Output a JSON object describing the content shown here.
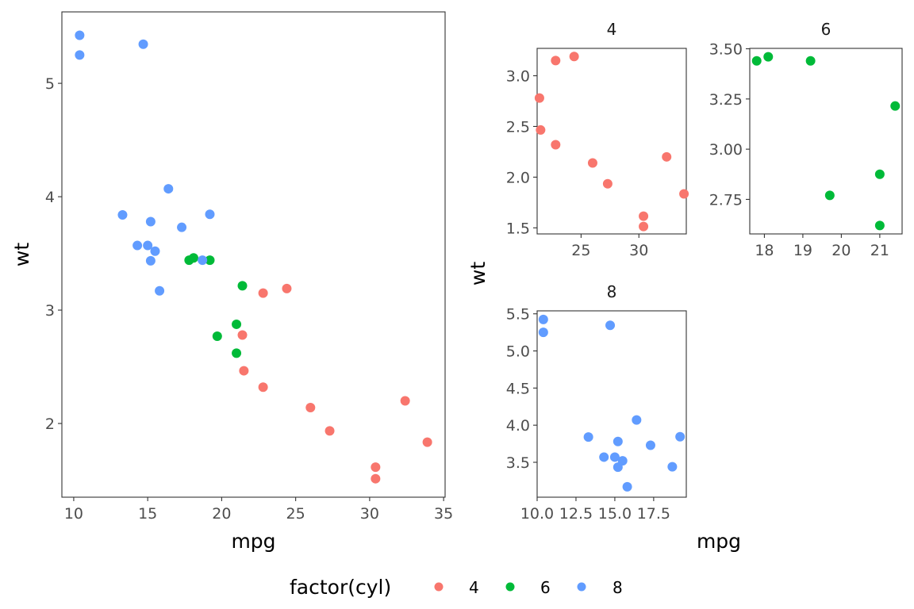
{
  "chart_data": [
    {
      "type": "scatter",
      "title": "",
      "xlabel": "mpg",
      "ylabel": "wt",
      "xlim": [
        9.2,
        35.1
      ],
      "ylim": [
        1.35,
        5.63
      ],
      "xticks": [
        10,
        15,
        20,
        25,
        30,
        35
      ],
      "xtick_labels": [
        "10",
        "15",
        "20",
        "25",
        "30",
        "35"
      ],
      "yticks": [
        2,
        3,
        4,
        5
      ],
      "ytick_labels": [
        "2",
        "3",
        "4",
        "5"
      ],
      "grid": false,
      "series": [
        {
          "name": "4",
          "color": "#F8766D",
          "points": [
            [
              22.8,
              2.32
            ],
            [
              24.4,
              3.19
            ],
            [
              22.8,
              3.15
            ],
            [
              32.4,
              2.2
            ],
            [
              30.4,
              1.615
            ],
            [
              33.9,
              1.835
            ],
            [
              21.5,
              2.465
            ],
            [
              27.3,
              1.935
            ],
            [
              26.0,
              2.14
            ],
            [
              30.4,
              1.513
            ],
            [
              21.4,
              2.78
            ]
          ]
        },
        {
          "name": "6",
          "color": "#00BA38",
          "points": [
            [
              21.0,
              2.62
            ],
            [
              21.0,
              2.875
            ],
            [
              21.4,
              3.215
            ],
            [
              18.1,
              3.46
            ],
            [
              19.2,
              3.44
            ],
            [
              17.8,
              3.44
            ],
            [
              19.7,
              2.77
            ]
          ]
        },
        {
          "name": "8",
          "color": "#619CFF",
          "points": [
            [
              18.7,
              3.44
            ],
            [
              14.3,
              3.57
            ],
            [
              16.4,
              4.07
            ],
            [
              17.3,
              3.73
            ],
            [
              15.2,
              3.78
            ],
            [
              10.4,
              5.25
            ],
            [
              10.4,
              5.424
            ],
            [
              14.7,
              5.345
            ],
            [
              15.5,
              3.52
            ],
            [
              15.2,
              3.435
            ],
            [
              13.3,
              3.84
            ],
            [
              19.2,
              3.845
            ],
            [
              15.8,
              3.17
            ],
            [
              15.0,
              3.57
            ]
          ]
        }
      ]
    },
    {
      "type": "scatter",
      "title": "4",
      "xlim": [
        21.2,
        34.1
      ],
      "ylim": [
        1.44,
        3.27
      ],
      "xticks": [
        25,
        30
      ],
      "xtick_labels": [
        "25",
        "30"
      ],
      "yticks": [
        1.5,
        2.0,
        2.5,
        3.0
      ],
      "ytick_labels": [
        "1.5",
        "2.0",
        "2.5",
        "3.0"
      ],
      "grid": false,
      "series": [
        {
          "name": "4",
          "color": "#F8766D",
          "points": [
            [
              22.8,
              2.32
            ],
            [
              24.4,
              3.19
            ],
            [
              22.8,
              3.15
            ],
            [
              32.4,
              2.2
            ],
            [
              30.4,
              1.615
            ],
            [
              33.9,
              1.835
            ],
            [
              21.5,
              2.465
            ],
            [
              27.3,
              1.935
            ],
            [
              26.0,
              2.14
            ],
            [
              30.4,
              1.513
            ],
            [
              21.4,
              2.78
            ]
          ]
        }
      ]
    },
    {
      "type": "scatter",
      "title": "6",
      "xlim": [
        17.62,
        21.58
      ],
      "ylim": [
        2.578,
        3.502
      ],
      "xticks": [
        18,
        19,
        20,
        21
      ],
      "xtick_labels": [
        "18",
        "19",
        "20",
        "21"
      ],
      "yticks": [
        2.75,
        3.0,
        3.25,
        3.5
      ],
      "ytick_labels": [
        "2.75",
        "3.00",
        "3.25",
        "3.50"
      ],
      "grid": false,
      "series": [
        {
          "name": "6",
          "color": "#00BA38",
          "points": [
            [
              21.0,
              2.62
            ],
            [
              21.0,
              2.875
            ],
            [
              21.4,
              3.215
            ],
            [
              18.1,
              3.46
            ],
            [
              19.2,
              3.44
            ],
            [
              17.8,
              3.44
            ],
            [
              19.7,
              2.77
            ]
          ]
        }
      ]
    },
    {
      "type": "scatter",
      "title": "8",
      "xlim": [
        10.0,
        19.6
      ],
      "ylim": [
        3.03,
        5.54
      ],
      "xticks": [
        10,
        12.5,
        15,
        17.5
      ],
      "xtick_labels": [
        "10.0",
        "12.5",
        "15.0",
        "17.5"
      ],
      "yticks": [
        3.5,
        4.0,
        4.5,
        5.0,
        5.5
      ],
      "ytick_labels": [
        "3.5",
        "4.0",
        "4.5",
        "5.0",
        "5.5"
      ],
      "grid": false,
      "series": [
        {
          "name": "8",
          "color": "#619CFF",
          "points": [
            [
              18.7,
              3.44
            ],
            [
              14.3,
              3.57
            ],
            [
              16.4,
              4.07
            ],
            [
              17.3,
              3.73
            ],
            [
              15.2,
              3.78
            ],
            [
              10.4,
              5.25
            ],
            [
              10.4,
              5.424
            ],
            [
              14.7,
              5.345
            ],
            [
              15.5,
              3.52
            ],
            [
              15.2,
              3.435
            ],
            [
              13.3,
              3.84
            ],
            [
              19.2,
              3.845
            ],
            [
              15.8,
              3.17
            ],
            [
              15.0,
              3.57
            ]
          ]
        }
      ]
    }
  ],
  "facet_labels": {
    "xlabel": "mpg",
    "ylabel": "wt"
  },
  "legend": {
    "title": "factor(cyl)",
    "position": "bottom",
    "items": [
      {
        "label": "4",
        "color": "#F8766D"
      },
      {
        "label": "6",
        "color": "#00BA38"
      },
      {
        "label": "8",
        "color": "#619CFF"
      }
    ]
  }
}
